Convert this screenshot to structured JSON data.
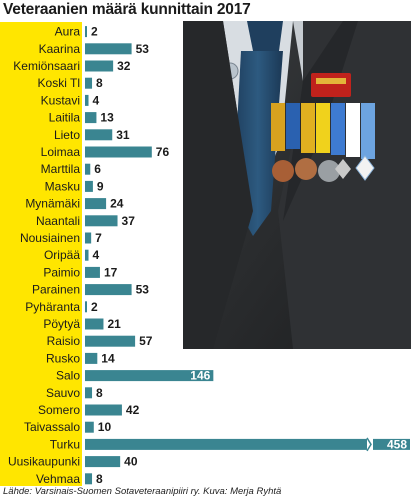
{
  "title": "Veteraanien määrä kunnittain 2017",
  "source": "Lähde: Varsinais-Suomen Sotaveteraanipiiri ry. Kuva: Merja Ryhtä",
  "colors": {
    "yellow": "#ffe600",
    "bar": "#3a8591",
    "bar_label_inside": "#ffffff",
    "text": "#1b1b1b"
  },
  "chart_data": {
    "type": "bar",
    "orientation": "horizontal",
    "title": "Veteraanien määrä kunnittain 2017",
    "categories": [
      "Aura",
      "Kaarina",
      "Kemiönsaari",
      "Koski Tl",
      "Kustavi",
      "Laitila",
      "Lieto",
      "Loimaa",
      "Marttila",
      "Masku",
      "Mynämäki",
      "Naantali",
      "Nousiainen",
      "Oripää",
      "Paimio",
      "Parainen",
      "Pyhäranta",
      "Pöytyä",
      "Raisio",
      "Rusko",
      "Salo",
      "Sauvo",
      "Somero",
      "Taivassalo",
      "Turku",
      "Uusikaupunki",
      "Vehmaa"
    ],
    "values": [
      2,
      53,
      32,
      8,
      4,
      13,
      31,
      76,
      6,
      9,
      24,
      37,
      7,
      4,
      17,
      53,
      2,
      21,
      57,
      14,
      146,
      8,
      42,
      10,
      458,
      40,
      8
    ],
    "value_labels": [
      "2",
      "53",
      "32",
      "8",
      "4",
      "13",
      "31",
      "76",
      "6",
      "9",
      "24",
      "37",
      "7",
      "4",
      "17",
      "53",
      "2",
      "21",
      "57",
      "14",
      "146",
      "8",
      "42",
      "10",
      "458",
      "40",
      "8"
    ],
    "broken_axis_category": "Turku",
    "xlim": [
      0,
      170
    ]
  }
}
